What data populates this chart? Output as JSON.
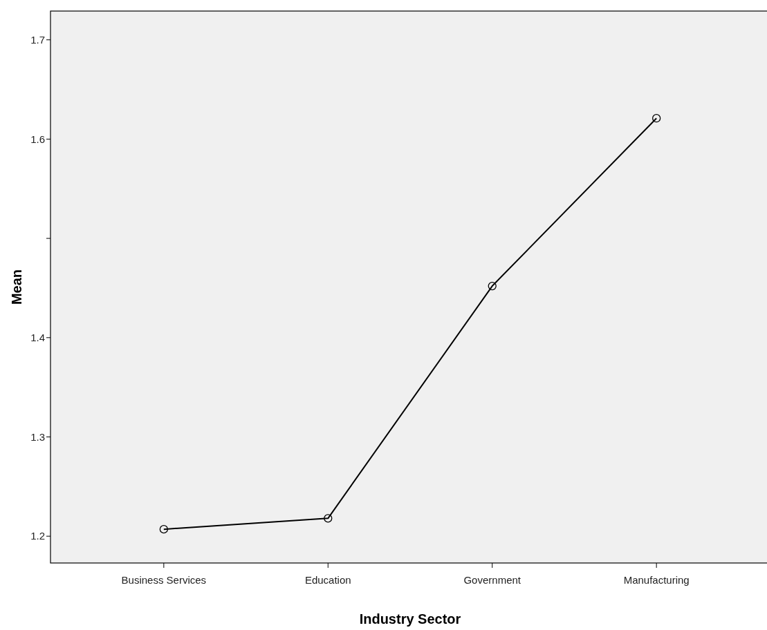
{
  "chart_data": {
    "type": "line",
    "xlabel": "Industry Sector",
    "ylabel": "Mean",
    "categories": [
      "Business Services",
      "Education",
      "Government",
      "Manufacturing"
    ],
    "series": [
      {
        "color": "#000000",
        "values": [
          1.207,
          1.218,
          1.452,
          1.621
        ]
      }
    ],
    "ylim": [
      1.173,
      1.729
    ],
    "yticks": [
      1.2,
      1.3,
      1.4,
      {
        "value": 1.5,
        "label": null
      },
      1.6,
      1.7
    ],
    "marker": "circle",
    "line_style": "solid",
    "grid": false
  }
}
